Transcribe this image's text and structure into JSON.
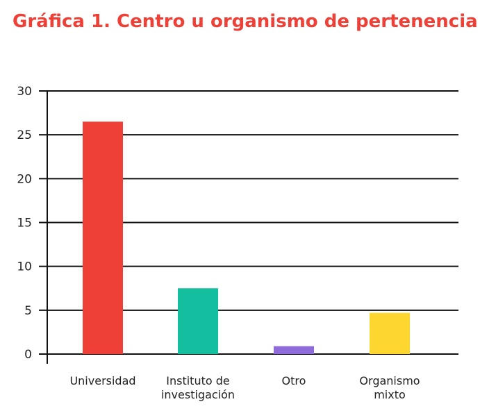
{
  "chart_data": {
    "type": "bar",
    "title": "Gráfica 1. Centro u organismo de pertenencia",
    "xlabel": "",
    "ylabel": "",
    "categories": [
      [
        "Universidad"
      ],
      [
        "Instituto de",
        "investigación"
      ],
      [
        "Otro"
      ],
      [
        "Organismo",
        "mixto"
      ]
    ],
    "values": [
      26.5,
      7.5,
      0.9,
      4.7
    ],
    "colors": [
      "#ee4036",
      "#13bf9f",
      "#8e6bd8",
      "#fed630"
    ],
    "ylim": [
      0,
      30
    ],
    "yticks": [
      "0",
      "5",
      "10",
      "15",
      "20",
      "25",
      "30"
    ],
    "grid": true,
    "legend": "none"
  }
}
